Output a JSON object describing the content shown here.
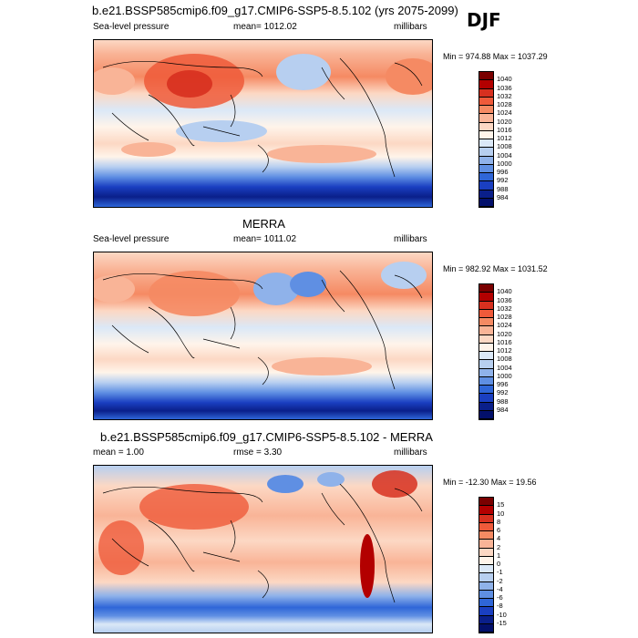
{
  "season": "DJF",
  "panels": [
    {
      "title": "b.e21.BSSP585cmip6.f09_g17.CMIP6-SSP5-8.5.102 (yrs 2075-2099)",
      "left_label": "Sea-level pressure",
      "center_label": "mean= 1012.02",
      "right_label": "millibars",
      "minmax": "Min = 974.88 Max = 1037.29",
      "colorbar": {
        "labels": [
          "1040",
          "1036",
          "1032",
          "1028",
          "1024",
          "1020",
          "1016",
          "1012",
          "1008",
          "1004",
          "1000",
          "996",
          "992",
          "988",
          "984"
        ],
        "colors": [
          "#7a0000",
          "#b30000",
          "#d7301f",
          "#ef5a3a",
          "#f58a63",
          "#f9b497",
          "#fcd8c4",
          "#fff4ea",
          "#dbe8f7",
          "#b7cff0",
          "#8fb2ea",
          "#5f8fe3",
          "#2f66d8",
          "#1a3fc1",
          "#0a1f8a",
          "#03106b"
        ]
      }
    },
    {
      "title": "MERRA",
      "left_label": "Sea-level pressure",
      "center_label": "mean= 1011.02",
      "right_label": "millibars",
      "minmax": "Min = 982.92 Max = 1031.52",
      "colorbar": {
        "labels": [
          "1040",
          "1036",
          "1032",
          "1028",
          "1024",
          "1020",
          "1016",
          "1012",
          "1008",
          "1004",
          "1000",
          "996",
          "992",
          "988",
          "984"
        ],
        "colors": [
          "#7a0000",
          "#b30000",
          "#d7301f",
          "#ef5a3a",
          "#f58a63",
          "#f9b497",
          "#fcd8c4",
          "#fff4ea",
          "#dbe8f7",
          "#b7cff0",
          "#8fb2ea",
          "#5f8fe3",
          "#2f66d8",
          "#1a3fc1",
          "#0a1f8a",
          "#03106b"
        ]
      }
    },
    {
      "title": "b.e21.BSSP585cmip6.f09_g17.CMIP6-SSP5-8.5.102 - MERRA",
      "left_label": "mean =   1.00",
      "center_label": "rmse =   3.30",
      "right_label": "millibars",
      "minmax": "Min = -12.30 Max =  19.56",
      "colorbar": {
        "labels": [
          "15",
          "10",
          "8",
          "6",
          "4",
          "2",
          "1",
          "0",
          "-1",
          "-2",
          "-4",
          "-6",
          "-8",
          "-10",
          "-15"
        ],
        "colors": [
          "#7a0000",
          "#b30000",
          "#d7301f",
          "#ef5a3a",
          "#f58a63",
          "#f9b497",
          "#fcd8c4",
          "#fff4ea",
          "#dbe8f7",
          "#b7cff0",
          "#8fb2ea",
          "#5f8fe3",
          "#2f66d8",
          "#1a3fc1",
          "#0a1f8a",
          "#03106b"
        ]
      }
    }
  ]
}
